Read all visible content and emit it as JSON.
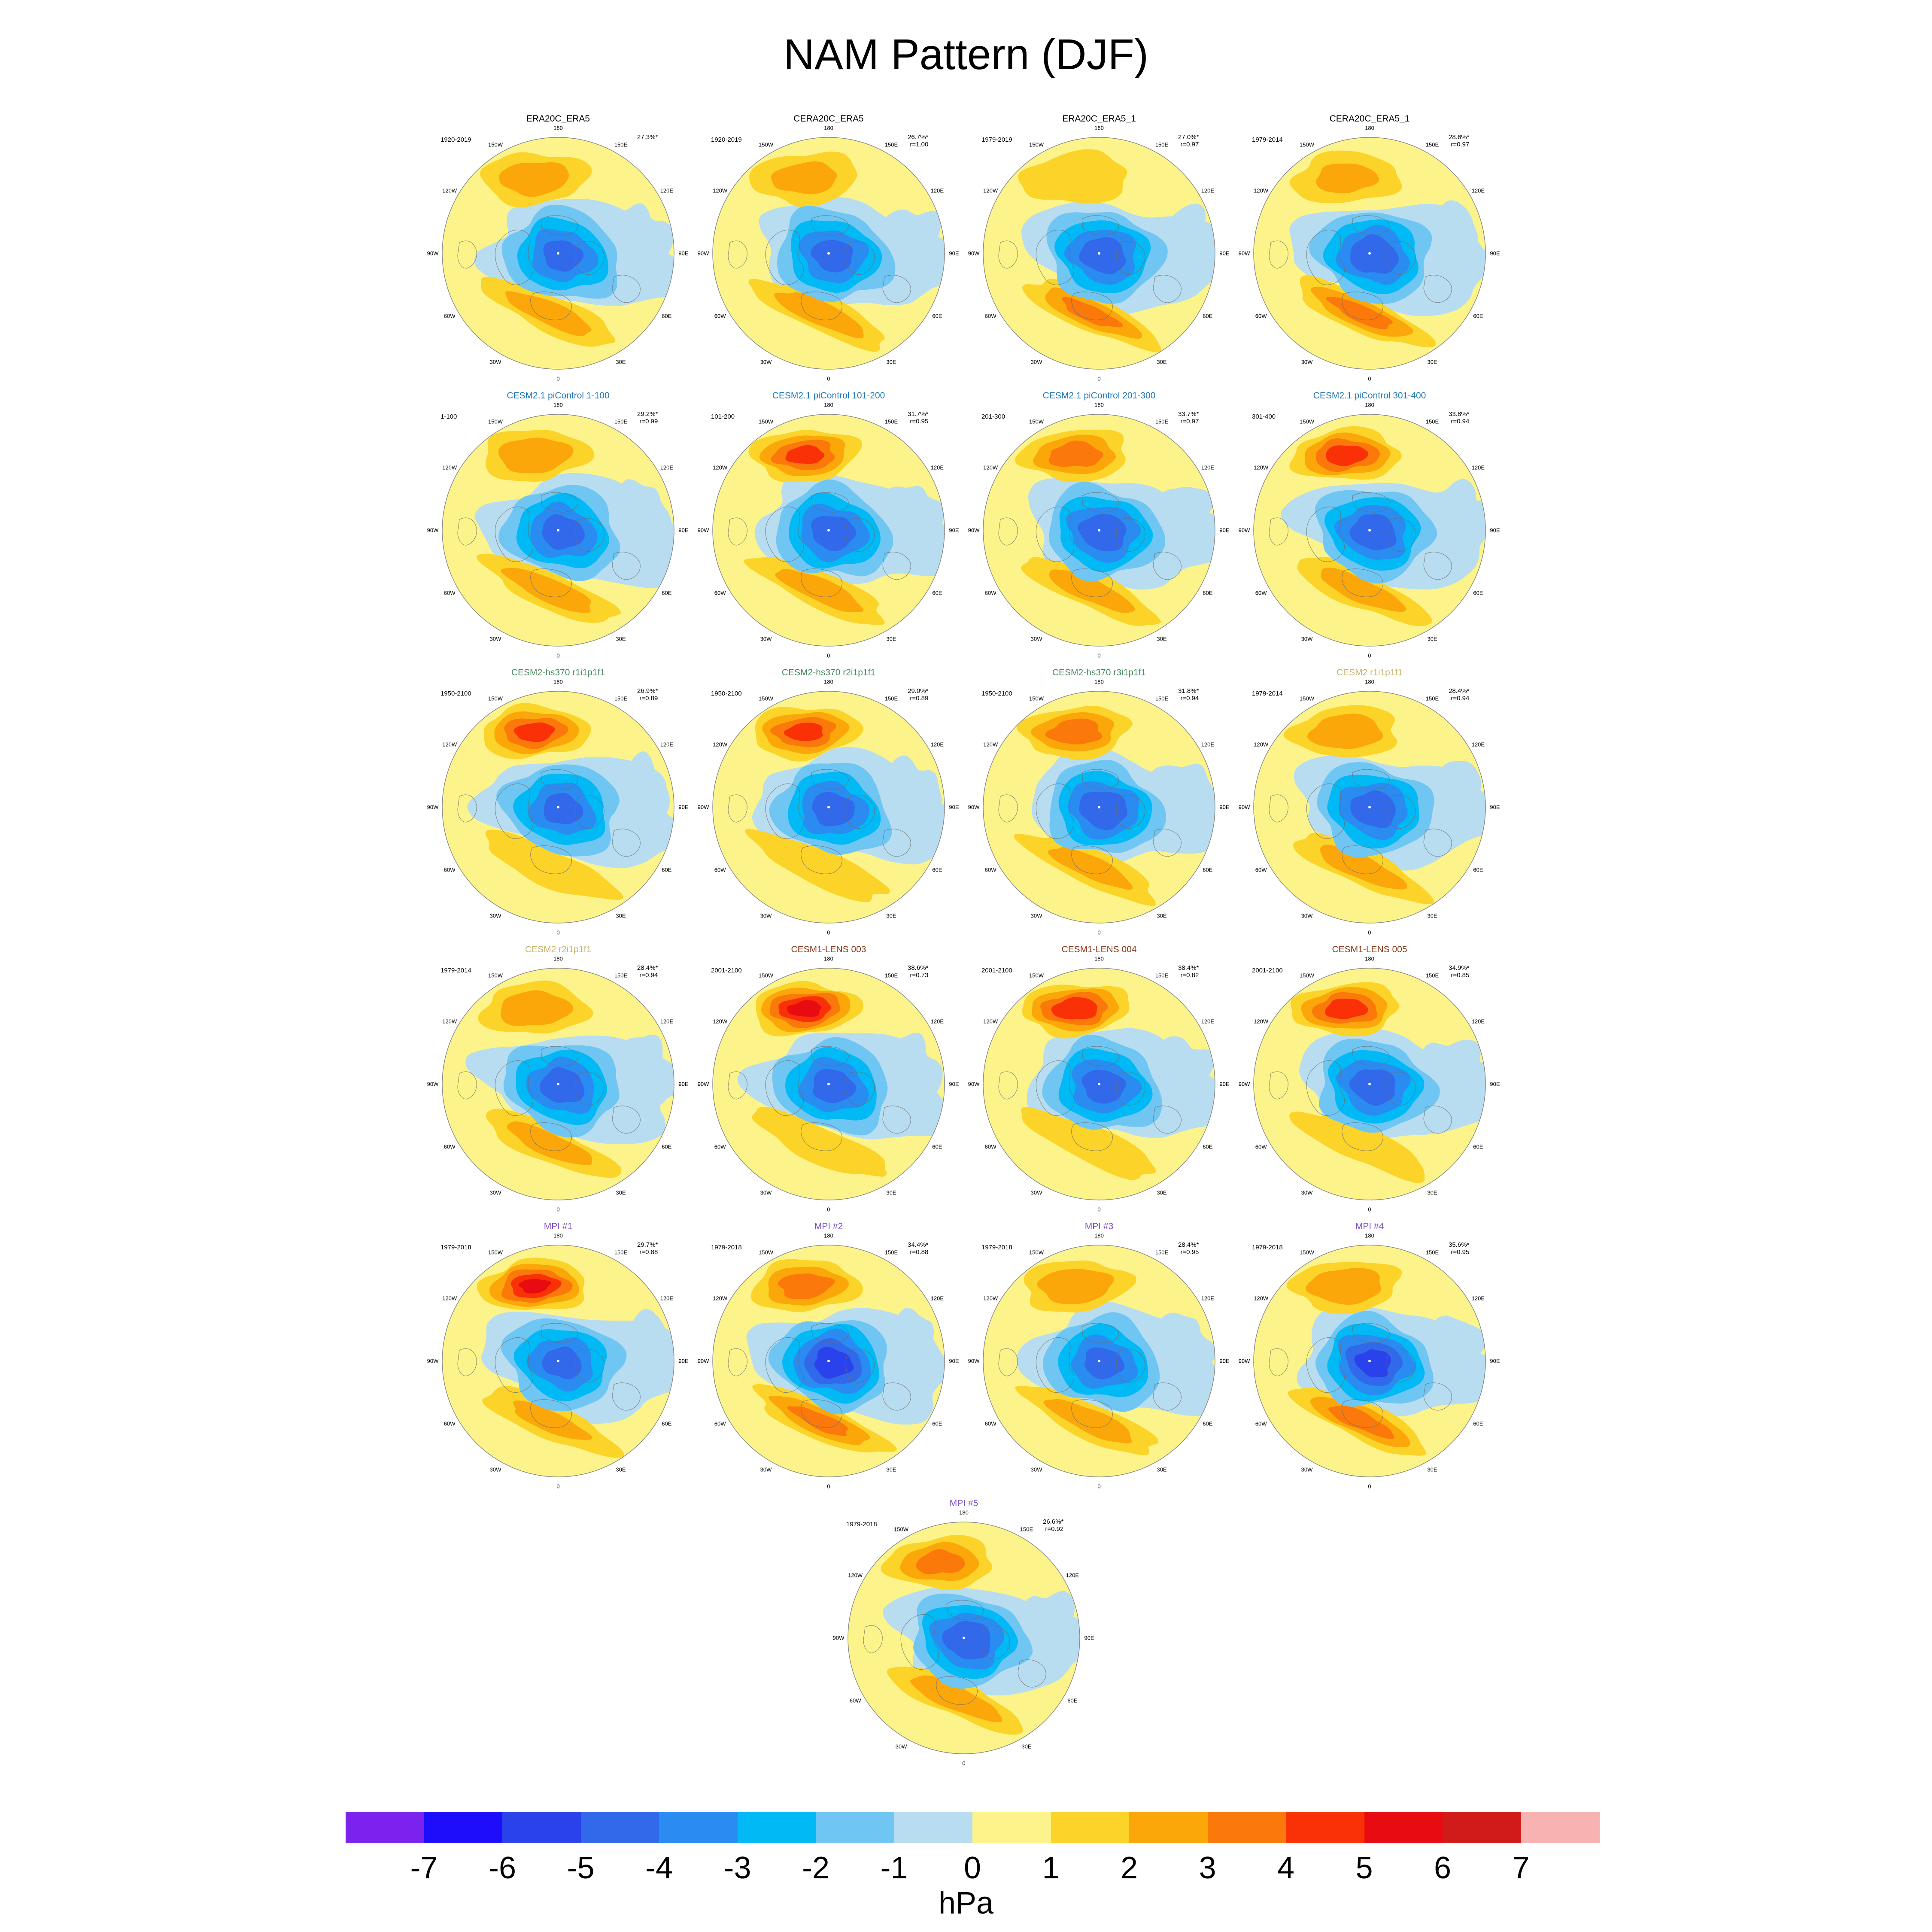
{
  "page_title": "NAM Pattern (DJF)",
  "colorbar": {
    "unit": "hPa",
    "levels": [
      "-7",
      "-6",
      "-5",
      "-4",
      "-3",
      "-2",
      "-1",
      "0",
      "1",
      "2",
      "3",
      "4",
      "5",
      "6",
      "7"
    ],
    "colors": [
      "#7b22ee",
      "#1e0dfb",
      "#2a42ec",
      "#3169ea",
      "#2a8bf1",
      "#00b9f5",
      "#70c6f2",
      "#b8ddf0",
      "#fcf48a",
      "#fcd328",
      "#fba709",
      "#fb780a",
      "#fa3006",
      "#e80c12",
      "#d11a1a",
      "#f9b2b2"
    ]
  },
  "chart_data": [
    {
      "type": "heatmap",
      "title": "ERA20C_ERA5",
      "title_color": "#000000",
      "period": "1920-2019",
      "pct": "27.3%*",
      "r": "",
      "pos_max": 2.5,
      "neg_min": -4.2,
      "atl_max": 2.4
    },
    {
      "type": "heatmap",
      "title": "CERA20C_ERA5",
      "title_color": "#000000",
      "period": "1920-2019",
      "pct": "26.7%*",
      "r": "r=1.00",
      "pos_max": 2.2,
      "neg_min": -4.3,
      "atl_max": 2.6
    },
    {
      "type": "heatmap",
      "title": "ERA20C_ERA5_1",
      "title_color": "#000000",
      "period": "1979-2019",
      "pct": "27.0%*",
      "r": "r=0.97",
      "pos_max": 1.9,
      "neg_min": -4.6,
      "atl_max": 3.2
    },
    {
      "type": "heatmap",
      "title": "CERA20C_ERA5_1",
      "title_color": "#000000",
      "period": "1979-2014",
      "pct": "28.6%*",
      "r": "r=0.97",
      "pos_max": 2.0,
      "neg_min": -4.8,
      "atl_max": 3.4
    },
    {
      "type": "heatmap",
      "title": "CESM2.1 piControl 1-100",
      "title_color": "#1f77b4",
      "period": "1-100",
      "pct": "29.2%*",
      "r": "r=0.99",
      "pos_max": 2.8,
      "neg_min": -4.4,
      "atl_max": 2.6
    },
    {
      "type": "heatmap",
      "title": "CESM2.1 piControl 101-200",
      "title_color": "#1f77b4",
      "period": "101-200",
      "pct": "31.7%*",
      "r": "r=0.95",
      "pos_max": 4.3,
      "neg_min": -4.5,
      "atl_max": 2.4
    },
    {
      "type": "heatmap",
      "title": "CESM2.1 piControl 201-300",
      "title_color": "#1f77b4",
      "period": "201-300",
      "pct": "33.7%*",
      "r": "r=0.97",
      "pos_max": 3.6,
      "neg_min": -4.7,
      "atl_max": 2.4
    },
    {
      "type": "heatmap",
      "title": "CESM2.1 piControl 301-400",
      "title_color": "#1f77b4",
      "period": "301-400",
      "pct": "33.8%*",
      "r": "r=0.94",
      "pos_max": 4.6,
      "neg_min": -4.6,
      "atl_max": 2.4
    },
    {
      "type": "heatmap",
      "title": "CESM2-hs370 r1i1p1f1",
      "title_color": "#4a8a60",
      "period": "1950-2100",
      "pct": "26.9%*",
      "r": "r=0.89",
      "pos_max": 4.4,
      "neg_min": -4.2,
      "atl_max": 1.9
    },
    {
      "type": "heatmap",
      "title": "CESM2-hs370 r2i1p1f1",
      "title_color": "#4a8a60",
      "period": "1950-2100",
      "pct": "29.0%*",
      "r": "r=0.89",
      "pos_max": 4.3,
      "neg_min": -4.4,
      "atl_max": 1.8
    },
    {
      "type": "heatmap",
      "title": "CESM2-hs370 r3i1p1f1",
      "title_color": "#4a8a60",
      "period": "1950-2100",
      "pct": "31.8%*",
      "r": "r=0.94",
      "pos_max": 3.6,
      "neg_min": -4.8,
      "atl_max": 2.2
    },
    {
      "type": "heatmap",
      "title": "CESM2 r1i1p1f1",
      "title_color": "#c8b46a",
      "period": "1979-2014",
      "pct": "28.4%*",
      "r": "r=0.94",
      "pos_max": 2.7,
      "neg_min": -4.6,
      "atl_max": 2.5
    },
    {
      "type": "heatmap",
      "title": "CESM2 r2i1p1f1",
      "title_color": "#c8b46a",
      "period": "1979-2014",
      "pct": "28.4%*",
      "r": "r=0.94",
      "pos_max": 2.7,
      "neg_min": -4.5,
      "atl_max": 2.4
    },
    {
      "type": "heatmap",
      "title": "CESM1-LENS 003",
      "title_color": "#8b3a1a",
      "period": "2001-2100",
      "pct": "38.6%*",
      "r": "r=0.73",
      "pos_max": 5.5,
      "neg_min": -4.4,
      "atl_max": 1.4
    },
    {
      "type": "heatmap",
      "title": "CESM1-LENS 004",
      "title_color": "#8b3a1a",
      "period": "2001-2100",
      "pct": "38.4%*",
      "r": "r=0.82",
      "pos_max": 4.9,
      "neg_min": -4.4,
      "atl_max": 1.6
    },
    {
      "type": "heatmap",
      "title": "CESM1-LENS 005",
      "title_color": "#8b3a1a",
      "period": "2001-2100",
      "pct": "34.9%*",
      "r": "r=0.85",
      "pos_max": 4.6,
      "neg_min": -4.6,
      "atl_max": 1.9
    },
    {
      "type": "heatmap",
      "title": "MPI #1",
      "title_color": "#7b4fc8",
      "period": "1979-2018",
      "pct": "29.7%*",
      "r": "r=0.88",
      "pos_max": 5.2,
      "neg_min": -4.2,
      "atl_max": 2.0
    },
    {
      "type": "heatmap",
      "title": "MPI #2",
      "title_color": "#7b4fc8",
      "period": "1979-2018",
      "pct": "34.4%*",
      "r": "r=0.88",
      "pos_max": 3.6,
      "neg_min": -5.6,
      "atl_max": 3.2
    },
    {
      "type": "heatmap",
      "title": "MPI #3",
      "title_color": "#7b4fc8",
      "period": "1979-2018",
      "pct": "28.4%*",
      "r": "r=0.95",
      "pos_max": 2.8,
      "neg_min": -4.2,
      "atl_max": 2.5
    },
    {
      "type": "heatmap",
      "title": "MPI #4",
      "title_color": "#7b4fc8",
      "period": "1979-2018",
      "pct": "35.6%*",
      "r": "r=0.95",
      "pos_max": 2.9,
      "neg_min": -5.4,
      "atl_max": 3.5
    },
    {
      "type": "heatmap",
      "title": "MPI #5",
      "title_color": "#7b4fc8",
      "period": "1979-2018",
      "pct": "26.6%*",
      "r": "r=0.92",
      "pos_max": 3.3,
      "neg_min": -4.8,
      "atl_max": 2.7
    }
  ],
  "lon_labels": [
    "180",
    "150E",
    "120E",
    "90E",
    "60E",
    "30E",
    "0",
    "30W",
    "60W",
    "90W",
    "120W",
    "150W"
  ]
}
